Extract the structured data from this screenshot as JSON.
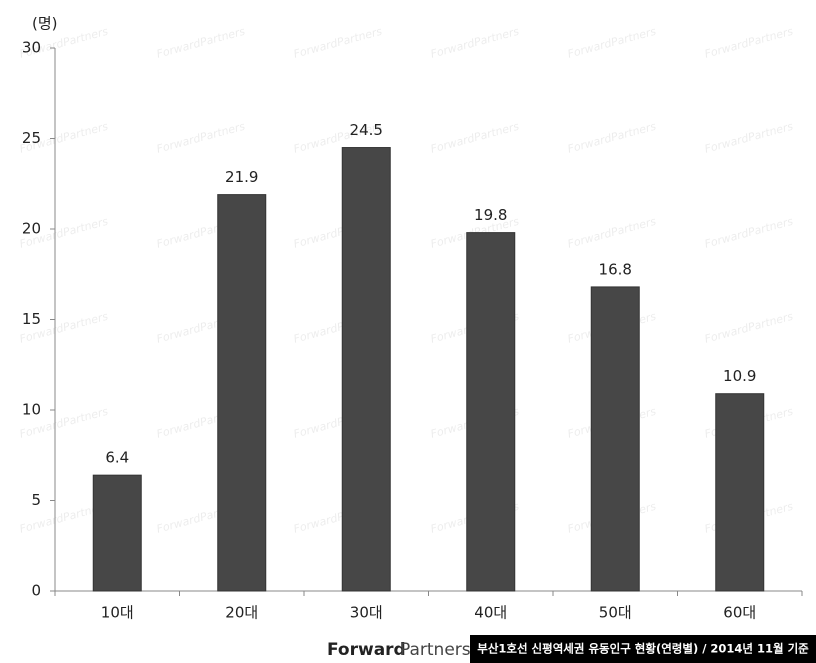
{
  "chart_data": {
    "type": "bar",
    "y_unit": "(명)",
    "categories": [
      "10대",
      "20대",
      "30대",
      "40대",
      "50대",
      "60대"
    ],
    "values": [
      6.4,
      21.9,
      24.5,
      19.8,
      16.8,
      10.9
    ],
    "color": "#474747",
    "ylim": [
      0,
      30
    ],
    "yticks": [
      0,
      5,
      10,
      15,
      20,
      25,
      30
    ],
    "grid": false,
    "watermark": "ForwardPartners",
    "logo": {
      "bold": "Forward",
      "light": "Partners"
    },
    "caption": "부산1호선 신평역세권 유동인구 현황(연령별) / 2014년 11월 기준"
  }
}
